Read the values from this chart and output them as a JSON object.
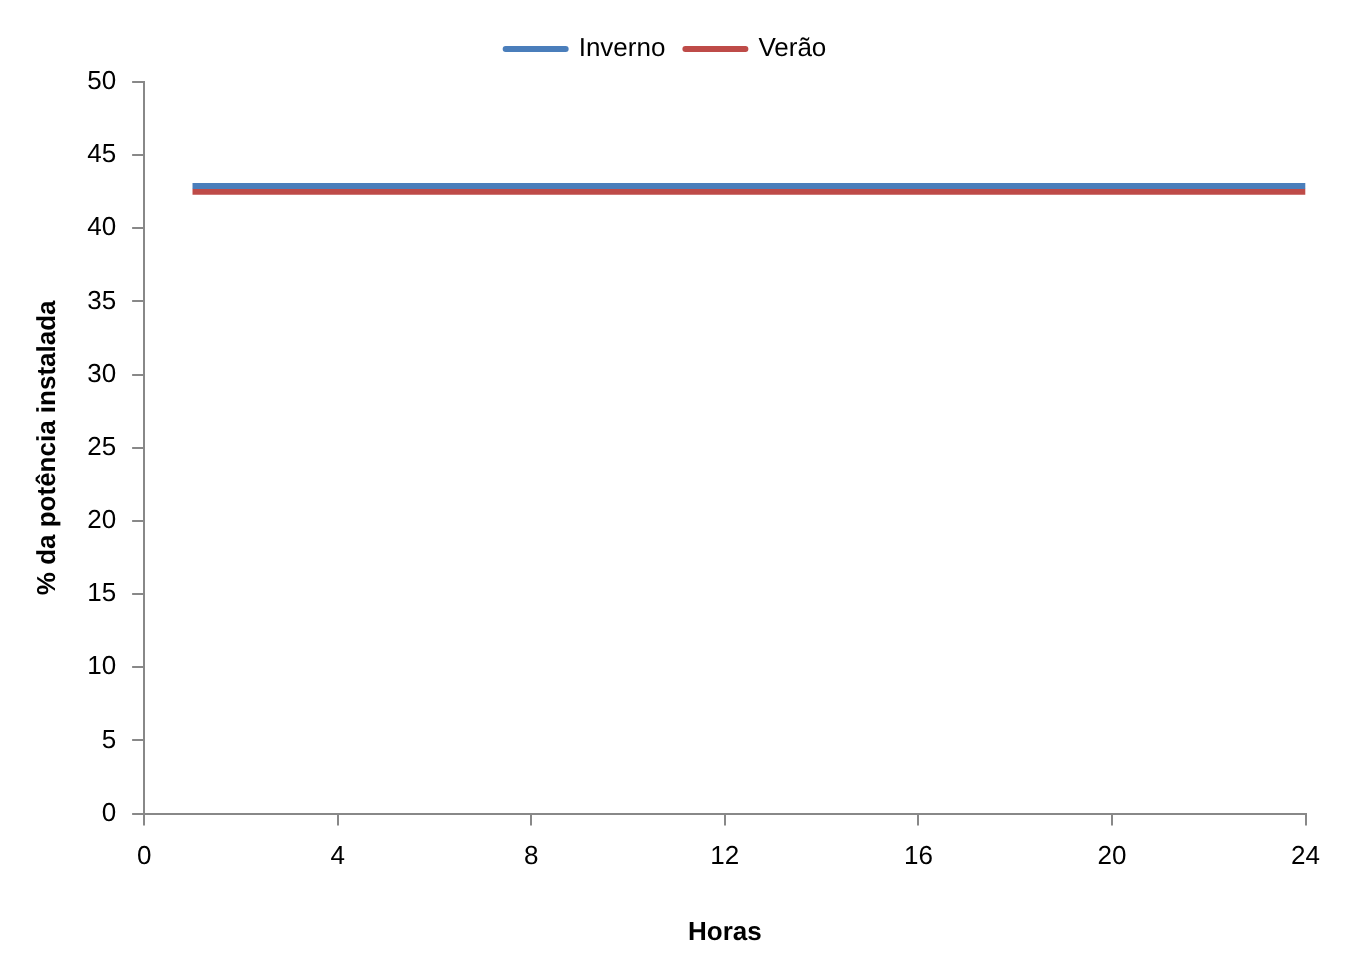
{
  "chart_data": {
    "type": "line",
    "xlabel": "Horas",
    "ylabel": "% da potência instalada",
    "x": [
      1,
      24
    ],
    "series": [
      {
        "name": "Inverno",
        "color": "#4a7ebb",
        "values": [
          42.9,
          42.9
        ]
      },
      {
        "name": "Verão",
        "color": "#be4b48",
        "values": [
          42.5,
          42.5
        ]
      }
    ],
    "xlim": [
      0,
      24
    ],
    "xticks": [
      0,
      4,
      8,
      12,
      16,
      20,
      24
    ],
    "ylim": [
      0,
      50
    ],
    "yticks": [
      0,
      5,
      10,
      15,
      20,
      25,
      30,
      35,
      40,
      45,
      50
    ],
    "grid": false,
    "legend": "top",
    "marker": "none",
    "line_style": "solid"
  }
}
